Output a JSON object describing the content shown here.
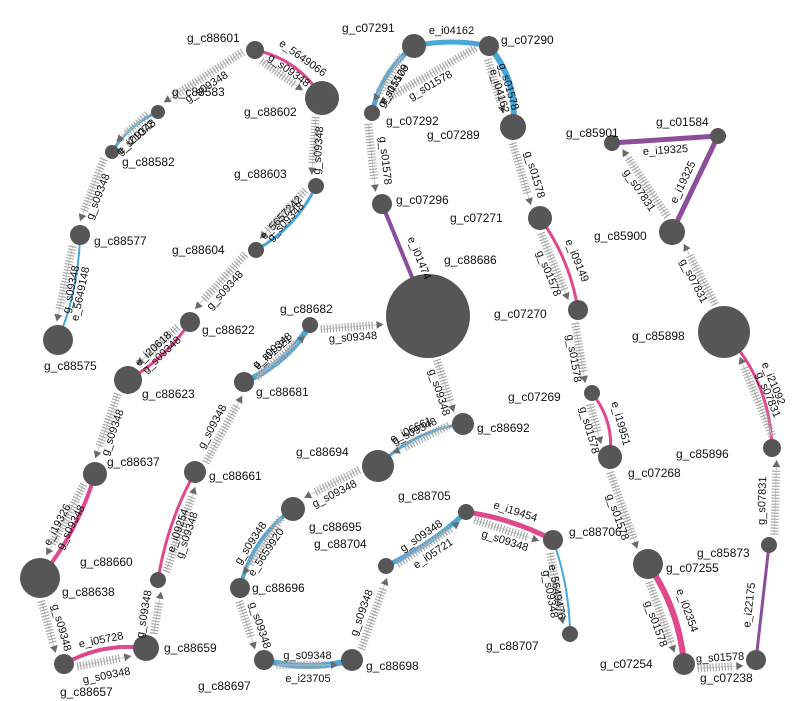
{
  "colors": {
    "node": "#565656",
    "pink": "#e0488e",
    "blue": "#4aa6d8",
    "purple": "#8a4e9c",
    "arrow": "#a8a8a8",
    "text": "#111111"
  },
  "nodes": [
    {
      "id": "g_c88601",
      "label": "g_c88601"
    },
    {
      "id": "g_c88602",
      "label": "g_c88602"
    },
    {
      "id": "g_c88583",
      "label": "g_c88583"
    },
    {
      "id": "g_c88582",
      "label": "g_c88582"
    },
    {
      "id": "g_c88577",
      "label": "g_c88577"
    },
    {
      "id": "g_c88575",
      "label": "g_c88575"
    },
    {
      "id": "g_c88603",
      "label": "g_c88603"
    },
    {
      "id": "g_c88604",
      "label": "g_c88604"
    },
    {
      "id": "g_c88622",
      "label": "g_c88622"
    },
    {
      "id": "g_c88623",
      "label": "g_c88623"
    },
    {
      "id": "g_c88637",
      "label": "g_c88637"
    },
    {
      "id": "g_c88638",
      "label": "g_c88638"
    },
    {
      "id": "g_c88657",
      "label": "g_c88657"
    },
    {
      "id": "g_c88659",
      "label": "g_c88659"
    },
    {
      "id": "g_c88660",
      "label": "g_c88660"
    },
    {
      "id": "g_c88661",
      "label": "g_c88661"
    },
    {
      "id": "g_c88681",
      "label": "g_c88681"
    },
    {
      "id": "g_c88682",
      "label": "g_c88682"
    },
    {
      "id": "g_c88686",
      "label": "g_c88686"
    },
    {
      "id": "g_c88692",
      "label": "g_c88692"
    },
    {
      "id": "g_c88694",
      "label": "g_c88694"
    },
    {
      "id": "g_c88695",
      "label": "g_c88695"
    },
    {
      "id": "g_c88696",
      "label": "g_c88696"
    },
    {
      "id": "g_c88697",
      "label": "g_c88697"
    },
    {
      "id": "g_c88698",
      "label": "g_c88698"
    },
    {
      "id": "g_c88704",
      "label": "g_c88704"
    },
    {
      "id": "g_c88705",
      "label": "g_c88705"
    },
    {
      "id": "g_c88706",
      "label": "g_c88706"
    },
    {
      "id": "g_c88707",
      "label": "g_c88707"
    },
    {
      "id": "g_c07291",
      "label": "g_c07291"
    },
    {
      "id": "g_c07290",
      "label": "g_c07290"
    },
    {
      "id": "g_c07292",
      "label": "g_c07292"
    },
    {
      "id": "g_c07289",
      "label": "g_c07289"
    },
    {
      "id": "g_c07296",
      "label": "g_c07296"
    },
    {
      "id": "g_c07271",
      "label": "g_c07271"
    },
    {
      "id": "g_c07270",
      "label": "g_c07270"
    },
    {
      "id": "g_c07269",
      "label": "g_c07269"
    },
    {
      "id": "g_c07268",
      "label": "g_c07268"
    },
    {
      "id": "g_c07255",
      "label": "g_c07255"
    },
    {
      "id": "g_c07254",
      "label": "g_c07254"
    },
    {
      "id": "g_c07238",
      "label": "g_c07238"
    },
    {
      "id": "g_c85901",
      "label": "g_c85901"
    },
    {
      "id": "g_c01584",
      "label": "g_c01584"
    },
    {
      "id": "g_c85900",
      "label": "g_c85900"
    },
    {
      "id": "g_c85898",
      "label": "g_c85898"
    },
    {
      "id": "g_c85896",
      "label": "g_c85896"
    },
    {
      "id": "g_c85873",
      "label": "g_c85873"
    }
  ],
  "arrows": [
    {
      "id": "a1",
      "label": "g_s09348"
    },
    {
      "id": "a2",
      "label": "g_s09348"
    },
    {
      "id": "a3",
      "label": "g_s09348"
    },
    {
      "id": "a4",
      "label": "g_s09348"
    },
    {
      "id": "a5",
      "label": "g_s09348"
    },
    {
      "id": "a6",
      "label": "g_s09348"
    },
    {
      "id": "a7",
      "label": "g_s09348"
    },
    {
      "id": "a8",
      "label": "g_s09348"
    },
    {
      "id": "a9",
      "label": "g_s09348"
    },
    {
      "id": "a10",
      "label": "g_s09348"
    },
    {
      "id": "a11",
      "label": "g_s09348"
    },
    {
      "id": "a12",
      "label": "g_s09348"
    },
    {
      "id": "a13",
      "label": "g_s09348"
    },
    {
      "id": "a14",
      "label": "g_s09348"
    },
    {
      "id": "a15",
      "label": "g_s09348"
    },
    {
      "id": "a16",
      "label": "g_s09348"
    },
    {
      "id": "a17",
      "label": "g_s09348"
    },
    {
      "id": "a18",
      "label": "g_s09348"
    },
    {
      "id": "a19",
      "label": "g_s09348"
    },
    {
      "id": "a20",
      "label": "g_s09348"
    },
    {
      "id": "a21",
      "label": "g_s09348"
    },
    {
      "id": "a22",
      "label": "g_s09348"
    },
    {
      "id": "a23",
      "label": "g_s09348"
    },
    {
      "id": "a24",
      "label": "g_s09348"
    },
    {
      "id": "a25",
      "label": "g_s09348"
    },
    {
      "id": "a26",
      "label": "g_s09348"
    },
    {
      "id": "a27",
      "label": "g_s09348"
    },
    {
      "id": "a28",
      "label": "g_s09348"
    },
    {
      "id": "a29",
      "label": "g_s01578"
    },
    {
      "id": "a30",
      "label": "g_s01578"
    },
    {
      "id": "a31",
      "label": "g_s01578"
    },
    {
      "id": "a32",
      "label": "g_s01578"
    },
    {
      "id": "a33",
      "label": "g_s01578"
    },
    {
      "id": "a34",
      "label": "g_s01578"
    },
    {
      "id": "a35",
      "label": "g_s01578"
    },
    {
      "id": "a36",
      "label": "g_s01578"
    },
    {
      "id": "a37",
      "label": "g_s01578"
    },
    {
      "id": "a38",
      "label": "g_s01578"
    },
    {
      "id": "a39",
      "label": "g_s01578"
    },
    {
      "id": "a40",
      "label": "g_s07831"
    },
    {
      "id": "a41",
      "label": "g_s07831"
    },
    {
      "id": "a42",
      "label": "g_s07831"
    },
    {
      "id": "a43",
      "label": "g_s07831"
    }
  ],
  "edges": [
    {
      "id": "e1",
      "label": "e_5649066",
      "color": "pink"
    },
    {
      "id": "e2",
      "label": "e_i21072",
      "color": "blue"
    },
    {
      "id": "e3",
      "label": "e_5649148",
      "color": "blue"
    },
    {
      "id": "e4",
      "label": "e_5657242",
      "color": "blue"
    },
    {
      "id": "e5",
      "label": "e_i20618",
      "color": "pink"
    },
    {
      "id": "e6",
      "label": "e_i19326",
      "color": "pink"
    },
    {
      "id": "e7",
      "label": "e_i09254",
      "color": "pink"
    },
    {
      "id": "e8",
      "label": "e_i05728",
      "color": "pink"
    },
    {
      "id": "e9",
      "label": "e_i01521",
      "color": "blue"
    },
    {
      "id": "e10",
      "label": "e_i06661",
      "color": "blue"
    },
    {
      "id": "e11",
      "label": "e_5659920",
      "color": "blue"
    },
    {
      "id": "e12",
      "label": "e_i23705",
      "color": "blue"
    },
    {
      "id": "e13",
      "label": "e_i05721",
      "color": "blue"
    },
    {
      "id": "e14",
      "label": "e_i19454",
      "color": "pink"
    },
    {
      "id": "e15",
      "label": "e_5649476",
      "color": "blue"
    },
    {
      "id": "e16",
      "label": "e_i04162",
      "color": "blue"
    },
    {
      "id": "e17",
      "label": "e_i04162",
      "color": "blue"
    },
    {
      "id": "e18",
      "label": "e_i15109",
      "color": "blue"
    },
    {
      "id": "e19",
      "label": "e_i01474",
      "color": "purple"
    },
    {
      "id": "e20",
      "label": "e_i09149",
      "color": "pink"
    },
    {
      "id": "e21",
      "label": "e_i19951",
      "color": "pink"
    },
    {
      "id": "e22",
      "label": "e_i02354",
      "color": "pink"
    },
    {
      "id": "e23",
      "label": "e_i19325",
      "color": "purple"
    },
    {
      "id": "e24",
      "label": "e_i19325",
      "color": "purple"
    },
    {
      "id": "e25",
      "label": "e_i21092",
      "color": "pink"
    },
    {
      "id": "e26",
      "label": "e_i22175",
      "color": "purple"
    }
  ]
}
